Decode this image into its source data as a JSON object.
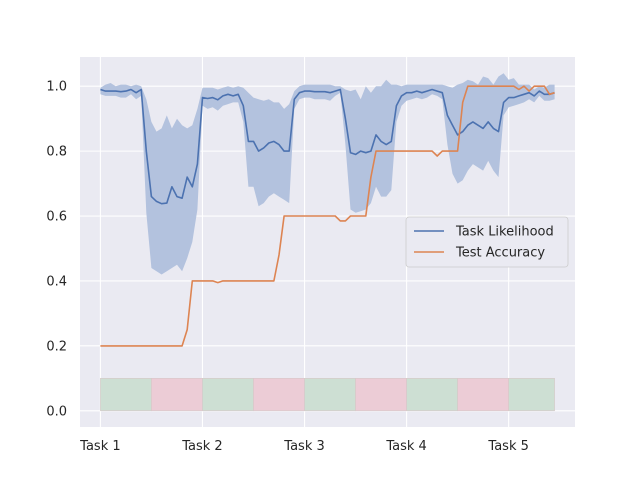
{
  "chart_data": {
    "type": "line",
    "xlim": [
      -0.2,
      4.65
    ],
    "ylim": [
      -0.05,
      1.09
    ],
    "grid": true,
    "legend": "center-right",
    "x_ticks": [
      0,
      1,
      2,
      3,
      4
    ],
    "x_tick_labels": [
      "Task 1",
      "Task 2",
      "Task 3",
      "Task 4",
      "Task 5"
    ],
    "y_ticks": [
      0.0,
      0.2,
      0.4,
      0.6,
      0.8,
      1.0
    ],
    "y_tick_labels": [
      "0.0",
      "0.2",
      "0.4",
      "0.6",
      "0.8",
      "1.0"
    ],
    "colors": {
      "background": "#eaeaf2",
      "grid": "#ffffff",
      "likelihood": "#4c72b0",
      "band": "#b3c2de",
      "accuracy": "#dd8452",
      "segment_green": "#cddfd3",
      "segment_red": "#ecccd6"
    },
    "task_segments": {
      "y_range": [
        0.0,
        0.1
      ],
      "segments": [
        {
          "x0": 0.0,
          "x1": 0.5,
          "color": "green"
        },
        {
          "x0": 0.5,
          "x1": 1.0,
          "color": "red"
        },
        {
          "x0": 1.0,
          "x1": 1.5,
          "color": "green"
        },
        {
          "x0": 1.5,
          "x1": 2.0,
          "color": "red"
        },
        {
          "x0": 2.0,
          "x1": 2.5,
          "color": "green"
        },
        {
          "x0": 2.5,
          "x1": 3.0,
          "color": "red"
        },
        {
          "x0": 3.0,
          "x1": 3.5,
          "color": "green"
        },
        {
          "x0": 3.5,
          "x1": 4.0,
          "color": "red"
        },
        {
          "x0": 4.0,
          "x1": 4.45,
          "color": "green"
        }
      ]
    },
    "series": [
      {
        "name": "Task Likelihood",
        "x": [
          0.0,
          0.05,
          0.1,
          0.15,
          0.2,
          0.25,
          0.3,
          0.35,
          0.4,
          0.45,
          0.5,
          0.55,
          0.6,
          0.65,
          0.7,
          0.75,
          0.8,
          0.85,
          0.9,
          0.95,
          1.0,
          1.05,
          1.1,
          1.15,
          1.2,
          1.25,
          1.3,
          1.35,
          1.4,
          1.45,
          1.5,
          1.55,
          1.6,
          1.65,
          1.7,
          1.75,
          1.8,
          1.85,
          1.9,
          1.95,
          2.0,
          2.05,
          2.1,
          2.15,
          2.2,
          2.25,
          2.3,
          2.35,
          2.4,
          2.45,
          2.5,
          2.55,
          2.6,
          2.65,
          2.7,
          2.75,
          2.8,
          2.85,
          2.9,
          2.95,
          3.0,
          3.05,
          3.1,
          3.15,
          3.2,
          3.25,
          3.3,
          3.35,
          3.4,
          3.45,
          3.5,
          3.55,
          3.6,
          3.65,
          3.7,
          3.75,
          3.8,
          3.85,
          3.9,
          3.95,
          4.0,
          4.05,
          4.1,
          4.15,
          4.2,
          4.25,
          4.3,
          4.35,
          4.4,
          4.45
        ],
        "y": [
          0.99,
          0.985,
          0.985,
          0.985,
          0.983,
          0.985,
          0.99,
          0.98,
          0.99,
          0.8,
          0.66,
          0.645,
          0.638,
          0.64,
          0.69,
          0.66,
          0.655,
          0.72,
          0.69,
          0.76,
          0.965,
          0.962,
          0.965,
          0.958,
          0.97,
          0.975,
          0.97,
          0.975,
          0.94,
          0.83,
          0.83,
          0.8,
          0.81,
          0.825,
          0.83,
          0.82,
          0.8,
          0.8,
          0.96,
          0.98,
          0.985,
          0.985,
          0.983,
          0.983,
          0.983,
          0.98,
          0.985,
          0.99,
          0.9,
          0.795,
          0.79,
          0.8,
          0.795,
          0.8,
          0.85,
          0.83,
          0.82,
          0.83,
          0.94,
          0.97,
          0.98,
          0.98,
          0.985,
          0.98,
          0.985,
          0.99,
          0.985,
          0.98,
          0.91,
          0.88,
          0.85,
          0.86,
          0.88,
          0.89,
          0.88,
          0.87,
          0.89,
          0.87,
          0.86,
          0.95,
          0.965,
          0.965,
          0.97,
          0.975,
          0.98,
          0.97,
          0.985,
          0.975,
          0.975,
          0.98
        ]
      },
      {
        "name": "Test Accuracy",
        "x": [
          0.0,
          0.1,
          0.2,
          0.3,
          0.4,
          0.5,
          0.6,
          0.7,
          0.8,
          0.85,
          0.9,
          1.0,
          1.1,
          1.15,
          1.2,
          1.25,
          1.3,
          1.4,
          1.5,
          1.6,
          1.7,
          1.75,
          1.8,
          1.85,
          1.9,
          2.0,
          2.1,
          2.2,
          2.3,
          2.35,
          2.4,
          2.45,
          2.5,
          2.55,
          2.6,
          2.65,
          2.7,
          2.75,
          2.8,
          2.85,
          2.9,
          3.0,
          3.1,
          3.2,
          3.25,
          3.3,
          3.35,
          3.4,
          3.45,
          3.5,
          3.55,
          3.6,
          3.65,
          3.7,
          3.75,
          3.8,
          3.9,
          4.0,
          4.05,
          4.1,
          4.15,
          4.2,
          4.25,
          4.3,
          4.35,
          4.4,
          4.45
        ],
        "y": [
          0.2,
          0.2,
          0.2,
          0.2,
          0.2,
          0.2,
          0.2,
          0.2,
          0.2,
          0.25,
          0.4,
          0.4,
          0.4,
          0.395,
          0.4,
          0.4,
          0.4,
          0.4,
          0.4,
          0.4,
          0.4,
          0.48,
          0.6,
          0.6,
          0.6,
          0.6,
          0.6,
          0.6,
          0.6,
          0.585,
          0.585,
          0.6,
          0.6,
          0.6,
          0.6,
          0.72,
          0.8,
          0.8,
          0.8,
          0.8,
          0.8,
          0.8,
          0.8,
          0.8,
          0.8,
          0.785,
          0.8,
          0.8,
          0.8,
          0.8,
          0.95,
          1.0,
          1.0,
          1.0,
          1.0,
          1.0,
          1.0,
          1.0,
          1.0,
          0.99,
          1.0,
          0.985,
          1.0,
          1.0,
          1.0,
          0.975,
          0.98
        ]
      }
    ],
    "band": {
      "x": [
        0.0,
        0.05,
        0.1,
        0.15,
        0.2,
        0.25,
        0.3,
        0.35,
        0.4,
        0.45,
        0.5,
        0.55,
        0.6,
        0.65,
        0.7,
        0.75,
        0.8,
        0.85,
        0.9,
        0.95,
        1.0,
        1.05,
        1.1,
        1.15,
        1.2,
        1.25,
        1.3,
        1.35,
        1.4,
        1.45,
        1.5,
        1.55,
        1.6,
        1.65,
        1.7,
        1.75,
        1.8,
        1.85,
        1.9,
        1.95,
        2.0,
        2.05,
        2.1,
        2.15,
        2.2,
        2.25,
        2.3,
        2.35,
        2.4,
        2.45,
        2.5,
        2.55,
        2.6,
        2.65,
        2.7,
        2.75,
        2.8,
        2.85,
        2.9,
        2.95,
        3.0,
        3.05,
        3.1,
        3.15,
        3.2,
        3.25,
        3.3,
        3.35,
        3.4,
        3.45,
        3.5,
        3.55,
        3.6,
        3.65,
        3.7,
        3.75,
        3.8,
        3.85,
        3.9,
        3.95,
        4.0,
        4.05,
        4.1,
        4.15,
        4.2,
        4.25,
        4.3,
        4.35,
        4.4,
        4.45
      ],
      "upper": [
        0.995,
        1.005,
        1.01,
        1.0,
        1.005,
        1.005,
        1.0,
        1.005,
        1.0,
        0.96,
        0.89,
        0.86,
        0.87,
        0.91,
        0.87,
        0.9,
        0.88,
        0.87,
        0.88,
        0.93,
        0.995,
        0.995,
        0.995,
        0.99,
        0.995,
        1.0,
        0.995,
        1.0,
        0.995,
        0.98,
        0.965,
        0.96,
        0.955,
        0.96,
        0.95,
        0.95,
        0.93,
        0.945,
        0.985,
        1.0,
        1.005,
        1.005,
        1.005,
        1.005,
        1.005,
        1.005,
        1.0,
        1.0,
        0.99,
        0.985,
        0.99,
        0.96,
        1.0,
        0.98,
        1.0,
        1.0,
        1.02,
        1.005,
        1.005,
        1.0,
        1.005,
        1.005,
        1.005,
        1.005,
        1.005,
        1.005,
        1.005,
        1.005,
        1.0,
        0.995,
        1.005,
        1.01,
        1.02,
        1.015,
        1.005,
        1.03,
        1.025,
        1.005,
        1.03,
        1.04,
        1.02,
        1.025,
        1.005,
        1.005,
        1.005,
        0.99,
        1.0,
        0.995,
        1.005,
        1.005
      ],
      "lower": [
        0.975,
        0.97,
        0.97,
        0.97,
        0.965,
        0.965,
        0.975,
        0.96,
        0.97,
        0.61,
        0.44,
        0.43,
        0.42,
        0.43,
        0.44,
        0.45,
        0.43,
        0.47,
        0.52,
        0.62,
        0.94,
        0.93,
        0.935,
        0.925,
        0.94,
        0.945,
        0.95,
        0.95,
        0.89,
        0.69,
        0.69,
        0.63,
        0.64,
        0.66,
        0.67,
        0.66,
        0.65,
        0.64,
        0.93,
        0.96,
        0.965,
        0.965,
        0.96,
        0.96,
        0.96,
        0.955,
        0.97,
        0.98,
        0.82,
        0.62,
        0.61,
        0.615,
        0.62,
        0.64,
        0.69,
        0.66,
        0.66,
        0.68,
        0.89,
        0.94,
        0.955,
        0.96,
        0.965,
        0.96,
        0.965,
        0.975,
        0.97,
        0.96,
        0.82,
        0.73,
        0.7,
        0.71,
        0.74,
        0.76,
        0.75,
        0.74,
        0.77,
        0.74,
        0.72,
        0.91,
        0.935,
        0.94,
        0.945,
        0.95,
        0.96,
        0.95,
        0.97,
        0.955,
        0.955,
        0.96
      ]
    }
  }
}
